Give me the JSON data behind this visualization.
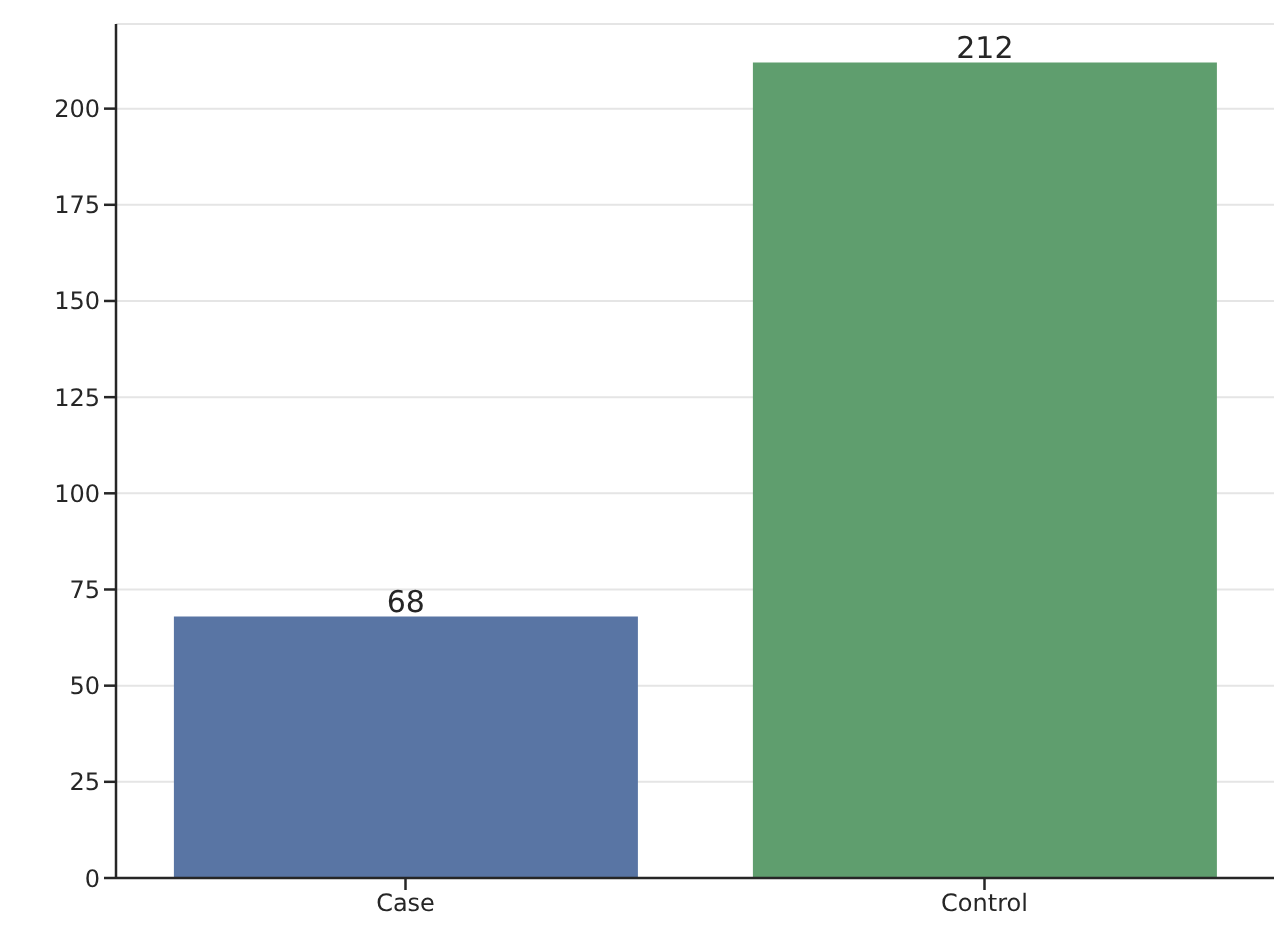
{
  "chart_data": {
    "type": "bar",
    "categories": [
      "Case",
      "Control"
    ],
    "values": [
      68,
      212
    ],
    "colors": [
      "#5975a4",
      "#5f9e6e"
    ],
    "ylim": [
      0,
      222
    ],
    "yticks": [
      0,
      25,
      50,
      75,
      100,
      125,
      150,
      175,
      200
    ],
    "grid": "y",
    "data_labels": true
  }
}
